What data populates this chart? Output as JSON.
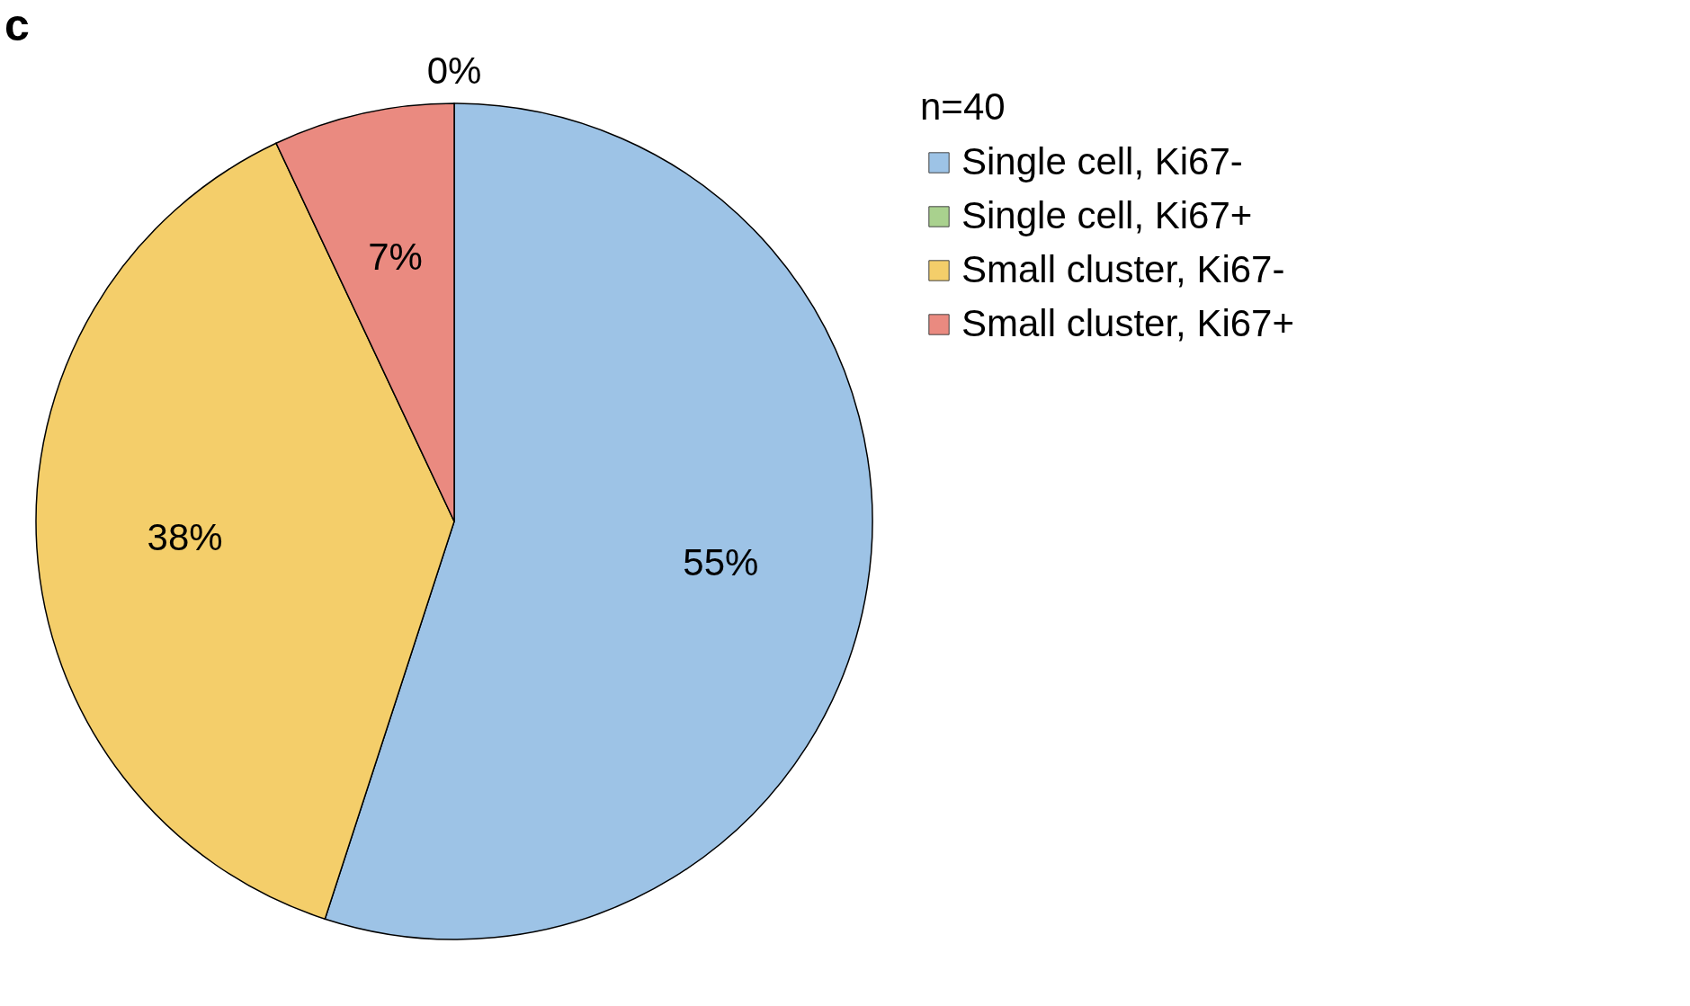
{
  "chart_data": {
    "type": "pie",
    "title": "c",
    "legend_title": "n=40",
    "categories": [
      "Single cell, Ki67-",
      "Single cell, Ki67+",
      "Small cluster, Ki67-",
      "Small cluster, Ki67+"
    ],
    "values": [
      55,
      0,
      38,
      7
    ],
    "colors": [
      "#9dc3e6",
      "#a9d18e",
      "#f4ce6a",
      "#ea8a80"
    ],
    "value_labels": [
      "55%",
      "0%",
      "38%",
      "7%"
    ],
    "legend": "right"
  }
}
